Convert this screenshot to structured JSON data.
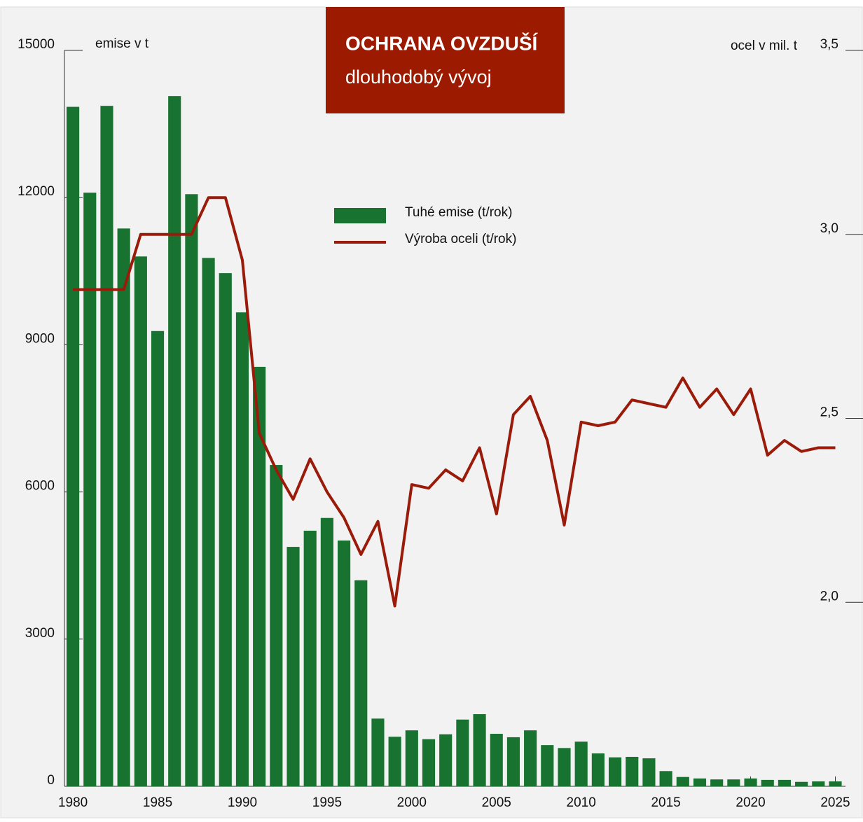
{
  "chart_data": {
    "type": "bar-line",
    "title": "OCHRANA OVZDUŠÍ",
    "subtitle": "dlouhodobý vývoj",
    "y_label": "emise v t",
    "y2_label": "ocel v mil. t",
    "x": [
      1980,
      1981,
      1982,
      1983,
      1984,
      1985,
      1986,
      1987,
      1988,
      1989,
      1990,
      1991,
      1992,
      1993,
      1994,
      1995,
      1996,
      1997,
      1998,
      1999,
      2000,
      2001,
      2002,
      2003,
      2004,
      2005,
      2006,
      2007,
      2008,
      2009,
      2010,
      2011,
      2012,
      2013,
      2014,
      2015,
      2016,
      2017,
      2018,
      2019,
      2020,
      2021,
      2022,
      2023,
      2024,
      2025
    ],
    "series": [
      {
        "name": "Tuhé emise (t/rok)",
        "type": "bar",
        "color": "#17732f",
        "values": [
          13850,
          12100,
          13870,
          11370,
          10800,
          9280,
          14070,
          12070,
          10770,
          10460,
          9660,
          8550,
          6550,
          4880,
          5210,
          5470,
          5010,
          4200,
          1380,
          1010,
          1140,
          960,
          1060,
          1360,
          1470,
          1070,
          1000,
          1140,
          840,
          780,
          910,
          670,
          590,
          600,
          570,
          310,
          190,
          160,
          140,
          140,
          160,
          130,
          130,
          90,
          100,
          100
        ]
      },
      {
        "name": "Výroba oceli (t/rok)",
        "type": "line",
        "axis": "y2",
        "color": "#9b1b0a",
        "values": [
          2.85,
          2.85,
          2.85,
          2.85,
          3.0,
          3.0,
          3.0,
          3.0,
          3.1,
          3.1,
          2.93,
          2.46,
          2.36,
          2.28,
          2.39,
          2.3,
          2.23,
          2.13,
          2.22,
          1.99,
          2.32,
          2.31,
          2.36,
          2.33,
          2.42,
          2.24,
          2.51,
          2.56,
          2.44,
          2.21,
          2.49,
          2.48,
          2.49,
          2.55,
          2.54,
          2.53,
          2.61,
          2.53,
          2.58,
          2.51,
          2.58,
          2.4,
          2.44,
          2.41,
          2.42,
          2.42
        ]
      }
    ],
    "xlim": [
      1979.5,
      2025.6
    ],
    "xticks": [
      1980,
      1985,
      1990,
      1995,
      2000,
      2005,
      2010,
      2015,
      2020,
      2025
    ],
    "ylim": [
      0,
      15000
    ],
    "yticks": [
      0,
      3000,
      6000,
      9000,
      12000,
      15000
    ],
    "y2lim": [
      1.5,
      3.5
    ],
    "y2ticks": [
      {
        "value": 2.0,
        "label": "2,0"
      },
      {
        "value": 2.5,
        "label": "2,5"
      },
      {
        "value": 3.0,
        "label": "3,0"
      },
      {
        "value": 3.5,
        "label": "3,5"
      }
    ],
    "title_color": "#9b1a00"
  }
}
